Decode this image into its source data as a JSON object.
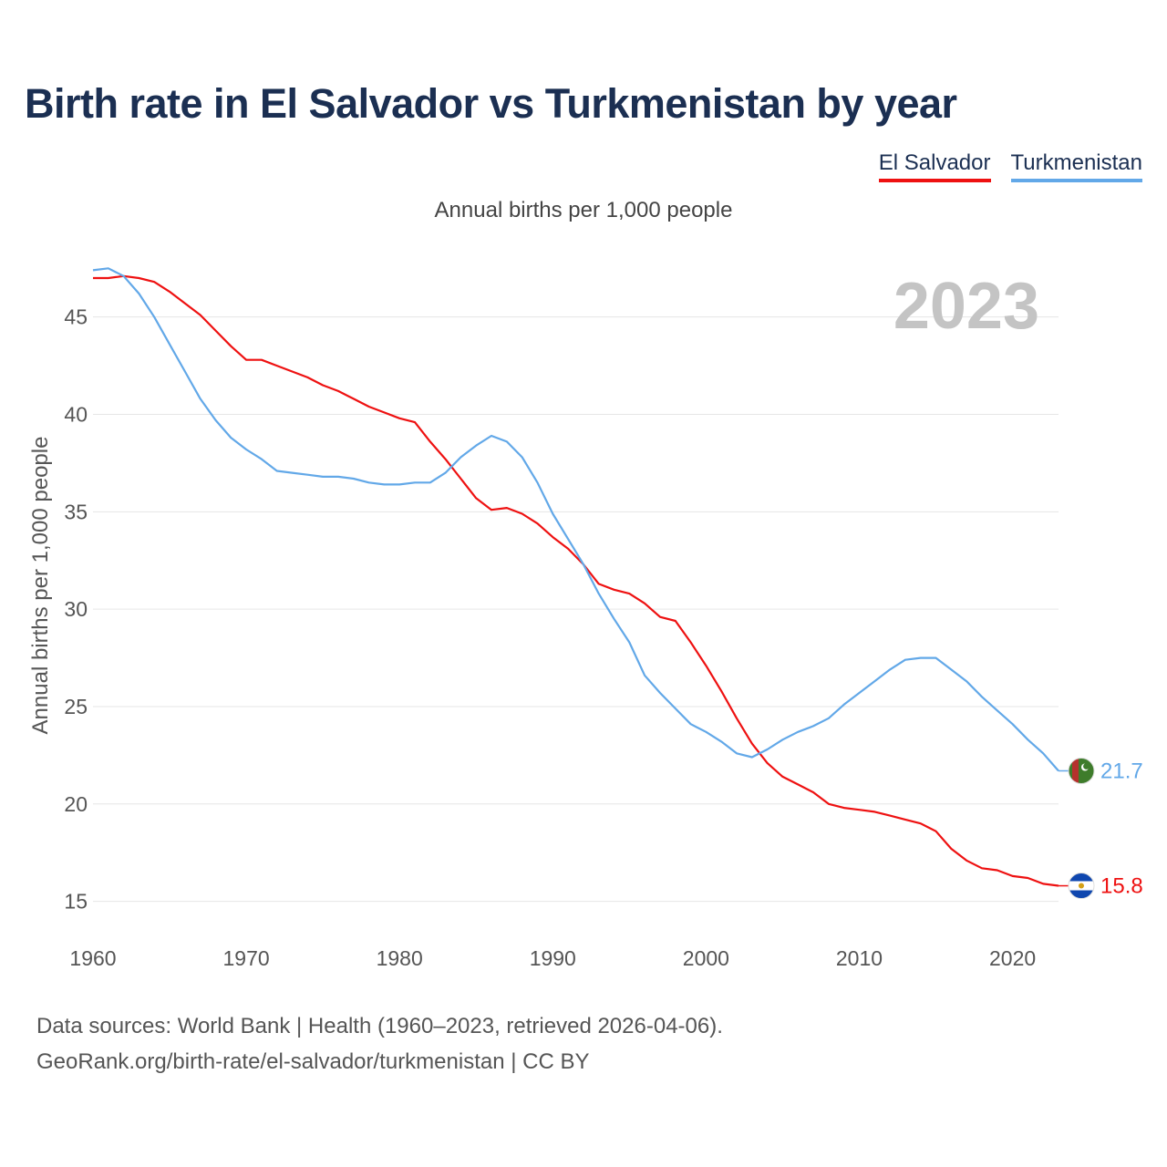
{
  "title": "Birth rate in El Salvador vs Turkmenistan by year",
  "subtitle": "Annual births per 1,000 people",
  "footer": {
    "line1": "Data sources: World Bank | Health (1960–2023, retrieved 2026-04-06).",
    "line2": "GeoRank.org/birth-rate/el-salvador/turkmenistan | CC BY"
  },
  "chart_data": {
    "type": "line",
    "title": "Birth rate in El Salvador vs Turkmenistan by year",
    "subtitle": "Annual births per 1,000 people",
    "xlabel": "",
    "ylabel": "Annual births per 1,000 people",
    "year_watermark": "2023",
    "grid": true,
    "legend_position": "top-right",
    "xlim": [
      1960,
      2023
    ],
    "ylim": [
      14,
      47.7
    ],
    "x_ticks": [
      1960,
      1970,
      1980,
      1990,
      2000,
      2010,
      2020
    ],
    "y_ticks": [
      15,
      20,
      25,
      30,
      35,
      40,
      45
    ],
    "x": [
      1960,
      1961,
      1962,
      1963,
      1964,
      1965,
      1966,
      1967,
      1968,
      1969,
      1970,
      1971,
      1972,
      1973,
      1974,
      1975,
      1976,
      1977,
      1978,
      1979,
      1980,
      1981,
      1982,
      1983,
      1984,
      1985,
      1986,
      1987,
      1988,
      1989,
      1990,
      1991,
      1992,
      1993,
      1994,
      1995,
      1996,
      1997,
      1998,
      1999,
      2000,
      2001,
      2002,
      2003,
      2004,
      2005,
      2006,
      2007,
      2008,
      2009,
      2010,
      2011,
      2012,
      2013,
      2014,
      2015,
      2016,
      2017,
      2018,
      2019,
      2020,
      2021,
      2022,
      2023
    ],
    "series": [
      {
        "name": "El Salvador",
        "color": "#ee1111",
        "end_label": "15.8",
        "values": [
          47.0,
          47.0,
          47.1,
          47.0,
          46.8,
          46.3,
          45.7,
          45.1,
          44.3,
          43.5,
          42.8,
          42.8,
          42.5,
          42.2,
          41.9,
          41.5,
          41.2,
          40.8,
          40.4,
          40.1,
          39.8,
          39.6,
          38.6,
          37.7,
          36.7,
          35.7,
          35.1,
          35.2,
          34.9,
          34.4,
          33.7,
          33.1,
          32.3,
          31.3,
          31.0,
          30.8,
          30.3,
          29.6,
          29.4,
          28.3,
          27.1,
          25.8,
          24.4,
          23.1,
          22.1,
          21.4,
          21.0,
          20.6,
          20.0,
          19.8,
          19.7,
          19.6,
          19.4,
          19.2,
          19.0,
          18.6,
          17.7,
          17.1,
          16.7,
          16.6,
          16.3,
          16.2,
          15.9,
          15.8
        ]
      },
      {
        "name": "Turkmenistan",
        "color": "#62a8e8",
        "end_label": "21.7",
        "values": [
          47.4,
          47.5,
          47.1,
          46.2,
          45.0,
          43.6,
          42.2,
          40.8,
          39.7,
          38.8,
          38.2,
          37.7,
          37.1,
          37.0,
          36.9,
          36.8,
          36.8,
          36.7,
          36.5,
          36.4,
          36.4,
          36.5,
          36.5,
          37.0,
          37.8,
          38.4,
          38.9,
          38.6,
          37.8,
          36.5,
          34.9,
          33.6,
          32.3,
          30.8,
          29.5,
          28.3,
          26.6,
          25.7,
          24.9,
          24.1,
          23.7,
          23.2,
          22.6,
          22.4,
          22.8,
          23.3,
          23.7,
          24.0,
          24.4,
          25.1,
          25.7,
          26.3,
          26.9,
          27.4,
          27.5,
          27.5,
          26.9,
          26.3,
          25.5,
          24.8,
          24.1,
          23.3,
          22.6,
          21.7
        ]
      }
    ]
  }
}
